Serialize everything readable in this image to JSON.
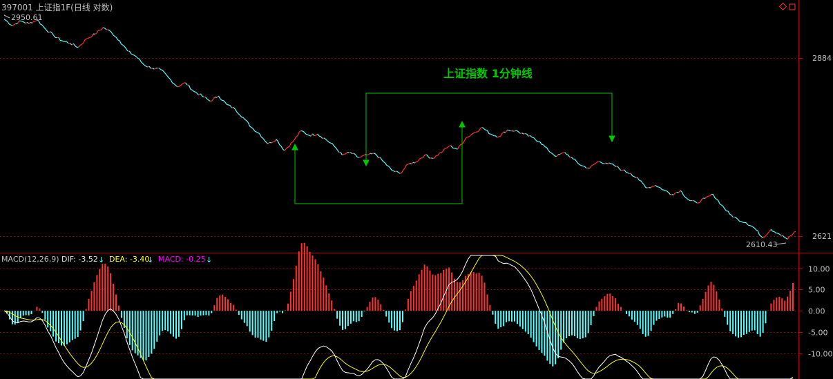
{
  "header": {
    "title": "397001 上证指1F(日线 对数)",
    "high_label": "2950.61",
    "low_label": "2610.43"
  },
  "annotation": {
    "text": "上证指数 1分钟线"
  },
  "price_axis": {
    "ticks": [
      "2884",
      "2621"
    ]
  },
  "macd": {
    "title": "MACD(12,26,9)",
    "dif_label": "DIF: -3.52",
    "dea_label": "DEA: -3.40",
    "macd_label": "MACD: -0.25",
    "axis_ticks": [
      "10.00",
      "5.00",
      "0.00",
      "-5.00",
      "-10.00"
    ]
  },
  "colors": {
    "background": "#000000",
    "frame": "#b40000",
    "up": "#ff3232",
    "down": "#54ffff",
    "dif": "#ffffff",
    "dea": "#ffff00",
    "macd_label": "#ff00ff",
    "annotation": "#00c800",
    "axis_text": "#c0c0c0"
  },
  "chart_data": [
    {
      "type": "line",
      "title": "397001 上证指1F(日线 对数)",
      "ylim": [
        2600,
        2955
      ],
      "y_ticks": [
        2884,
        2621
      ],
      "series": [
        {
          "name": "price",
          "values": [
            2945,
            2935,
            2942,
            2938,
            2944,
            2930,
            2920,
            2912,
            2908,
            2902,
            2915,
            2922,
            2932,
            2925,
            2912,
            2896,
            2888,
            2875,
            2870,
            2868,
            2855,
            2842,
            2848,
            2835,
            2828,
            2820,
            2828,
            2815,
            2808,
            2795,
            2780,
            2770,
            2755,
            2762,
            2745,
            2758,
            2775,
            2768,
            2770,
            2762,
            2752,
            2738,
            2742,
            2734,
            2738,
            2740,
            2728,
            2715,
            2710,
            2724,
            2728,
            2738,
            2733,
            2742,
            2752,
            2747,
            2764,
            2772,
            2780,
            2770,
            2766,
            2776,
            2775,
            2770,
            2765,
            2758,
            2745,
            2736,
            2742,
            2732,
            2722,
            2718,
            2728,
            2726,
            2722,
            2715,
            2710,
            2700,
            2688,
            2692,
            2685,
            2678,
            2684,
            2670,
            2665,
            2672,
            2678,
            2662,
            2648,
            2640,
            2635,
            2627,
            2612,
            2625,
            2618,
            2610,
            2622
          ]
        }
      ],
      "up_down_note": "segments rising drawn red, falling drawn cyan"
    },
    {
      "type": "bar",
      "title": "MACD(12,26,9)",
      "ylim": [
        -16,
        13
      ],
      "y_ticks": [
        10,
        5,
        0,
        -5,
        -10
      ],
      "series": [
        {
          "name": "DIF",
          "values": [
            -3.52
          ]
        },
        {
          "name": "DEA",
          "values": [
            -3.4
          ]
        },
        {
          "name": "MACD",
          "values": [
            -0.25
          ]
        }
      ]
    }
  ]
}
